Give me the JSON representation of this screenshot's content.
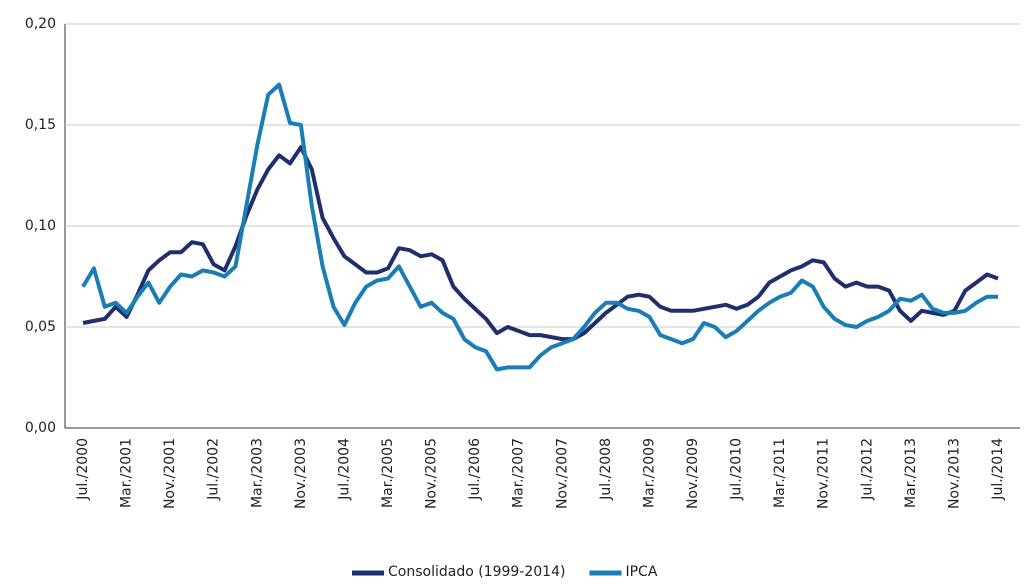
{
  "chart_data": {
    "type": "line",
    "categories": [
      "Jul./2000",
      null,
      null,
      null,
      "Mar./2001",
      null,
      null,
      null,
      "Nov./2001",
      null,
      null,
      null,
      "Jul./2002",
      null,
      null,
      null,
      "Mar./2003",
      null,
      null,
      null,
      "Nov./2003",
      null,
      null,
      null,
      "Jul./2004",
      null,
      null,
      null,
      "Mar./2005",
      null,
      null,
      null,
      "Nov./2005",
      null,
      null,
      null,
      "Jul./2006",
      null,
      null,
      null,
      "Mar./2007",
      null,
      null,
      null,
      "Nov./2007",
      null,
      null,
      null,
      "Jul./2008",
      null,
      null,
      null,
      "Mar./2009",
      null,
      null,
      null,
      "Nov./2009",
      null,
      null,
      null,
      "Jul./2010",
      null,
      null,
      null,
      "Mar./2011",
      null,
      null,
      null,
      "Nov./2011",
      null,
      null,
      null,
      "Jul./2012",
      null,
      null,
      null,
      "Mar./2013",
      null,
      null,
      null,
      "Nov./2013",
      null,
      null,
      null,
      "Jul./2014"
    ],
    "series": [
      {
        "name": "Consolidado (1999-2014)",
        "color": "#1f2f6e",
        "values": [
          0.052,
          0.053,
          0.054,
          0.06,
          0.055,
          0.066,
          0.078,
          0.083,
          0.087,
          0.087,
          0.092,
          0.091,
          0.081,
          0.078,
          0.09,
          0.105,
          0.118,
          0.128,
          0.135,
          0.131,
          0.139,
          0.128,
          0.104,
          0.094,
          0.085,
          0.081,
          0.077,
          0.077,
          0.079,
          0.089,
          0.088,
          0.085,
          0.086,
          0.083,
          0.07,
          0.064,
          0.059,
          0.054,
          0.047,
          0.05,
          0.048,
          0.046,
          0.046,
          0.045,
          0.044,
          0.044,
          0.047,
          0.052,
          0.057,
          0.061,
          0.065,
          0.066,
          0.065,
          0.06,
          0.058,
          0.058,
          0.058,
          0.059,
          0.06,
          0.061,
          0.059,
          0.061,
          0.065,
          0.072,
          0.075,
          0.078,
          0.08,
          0.083,
          0.082,
          0.074,
          0.07,
          0.072,
          0.07,
          0.07,
          0.068,
          0.058,
          0.053,
          0.058,
          0.057,
          0.056,
          0.058,
          0.068,
          0.072,
          0.076,
          0.074
        ]
      },
      {
        "name": "IPCA",
        "color": "#1a7db6",
        "values": [
          0.07,
          0.079,
          0.06,
          0.062,
          0.057,
          0.065,
          0.072,
          0.062,
          0.07,
          0.076,
          0.075,
          0.078,
          0.077,
          0.075,
          0.08,
          0.11,
          0.14,
          0.165,
          0.17,
          0.151,
          0.15,
          0.11,
          0.08,
          0.06,
          0.051,
          0.062,
          0.07,
          0.073,
          0.074,
          0.08,
          0.07,
          0.06,
          0.062,
          0.057,
          0.054,
          0.044,
          0.04,
          0.038,
          0.029,
          0.03,
          0.03,
          0.03,
          0.036,
          0.04,
          0.042,
          0.044,
          0.05,
          0.057,
          0.062,
          0.062,
          0.059,
          0.058,
          0.055,
          0.046,
          0.044,
          0.042,
          0.044,
          0.052,
          0.05,
          0.045,
          0.048,
          0.053,
          0.058,
          0.062,
          0.065,
          0.067,
          0.073,
          0.07,
          0.06,
          0.054,
          0.051,
          0.05,
          0.053,
          0.055,
          0.058,
          0.064,
          0.063,
          0.066,
          0.059,
          0.057,
          0.057,
          0.058,
          0.062,
          0.065,
          0.065
        ]
      }
    ],
    "ylim": [
      0,
      0.2
    ],
    "yticks": [
      {
        "value": 0,
        "label": "0,00"
      },
      {
        "value": 0.05,
        "label": "0,05"
      },
      {
        "value": 0.1,
        "label": "0,10"
      },
      {
        "value": 0.15,
        "label": "0,15"
      },
      {
        "value": 0.2,
        "label": "0,20"
      }
    ],
    "grid": true
  }
}
